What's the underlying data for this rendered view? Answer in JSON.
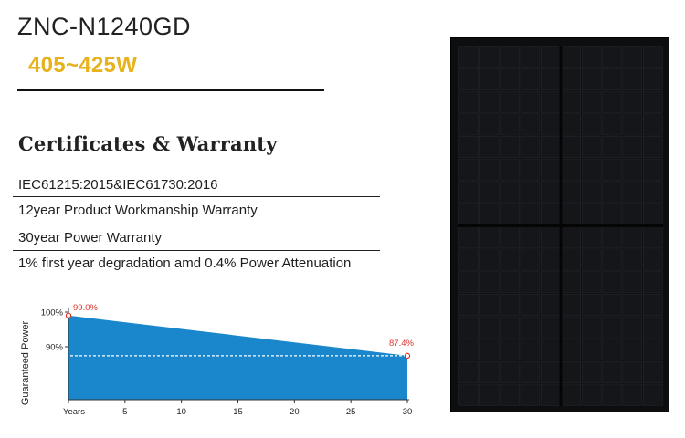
{
  "product": {
    "model": "ZNC-N1240GD",
    "power_range": "405~425W"
  },
  "certificates": {
    "heading": "Certificates & Warranty",
    "items": [
      "IEC61215:2015&IEC61730:2016",
      "12year Product Workmanship Warranty",
      "30year Power Warranty",
      "1% first year degradation amd 0.4% Power Attenuation"
    ]
  },
  "chart_data": {
    "type": "area",
    "title": "",
    "xlabel": "",
    "ylabel": "Guaranteed Power",
    "x_tick_labels": [
      "Years",
      "5",
      "10",
      "15",
      "20",
      "25",
      "30"
    ],
    "x_ticks": [
      0,
      5,
      10,
      15,
      20,
      25,
      30
    ],
    "y_tick_labels": [
      "100%",
      "90%"
    ],
    "y_ticks": [
      100,
      90
    ],
    "xlim": [
      0,
      30
    ],
    "x": [
      0,
      30
    ],
    "values": [
      99.0,
      87.4
    ],
    "data_labels": [
      "99.0%",
      "87.4%"
    ],
    "reference_line": 87.4,
    "color": "#1a87cc",
    "label_color": "#e0332b"
  },
  "panel": {
    "color": "#0d0e10",
    "description_icon": "solar-panel"
  }
}
